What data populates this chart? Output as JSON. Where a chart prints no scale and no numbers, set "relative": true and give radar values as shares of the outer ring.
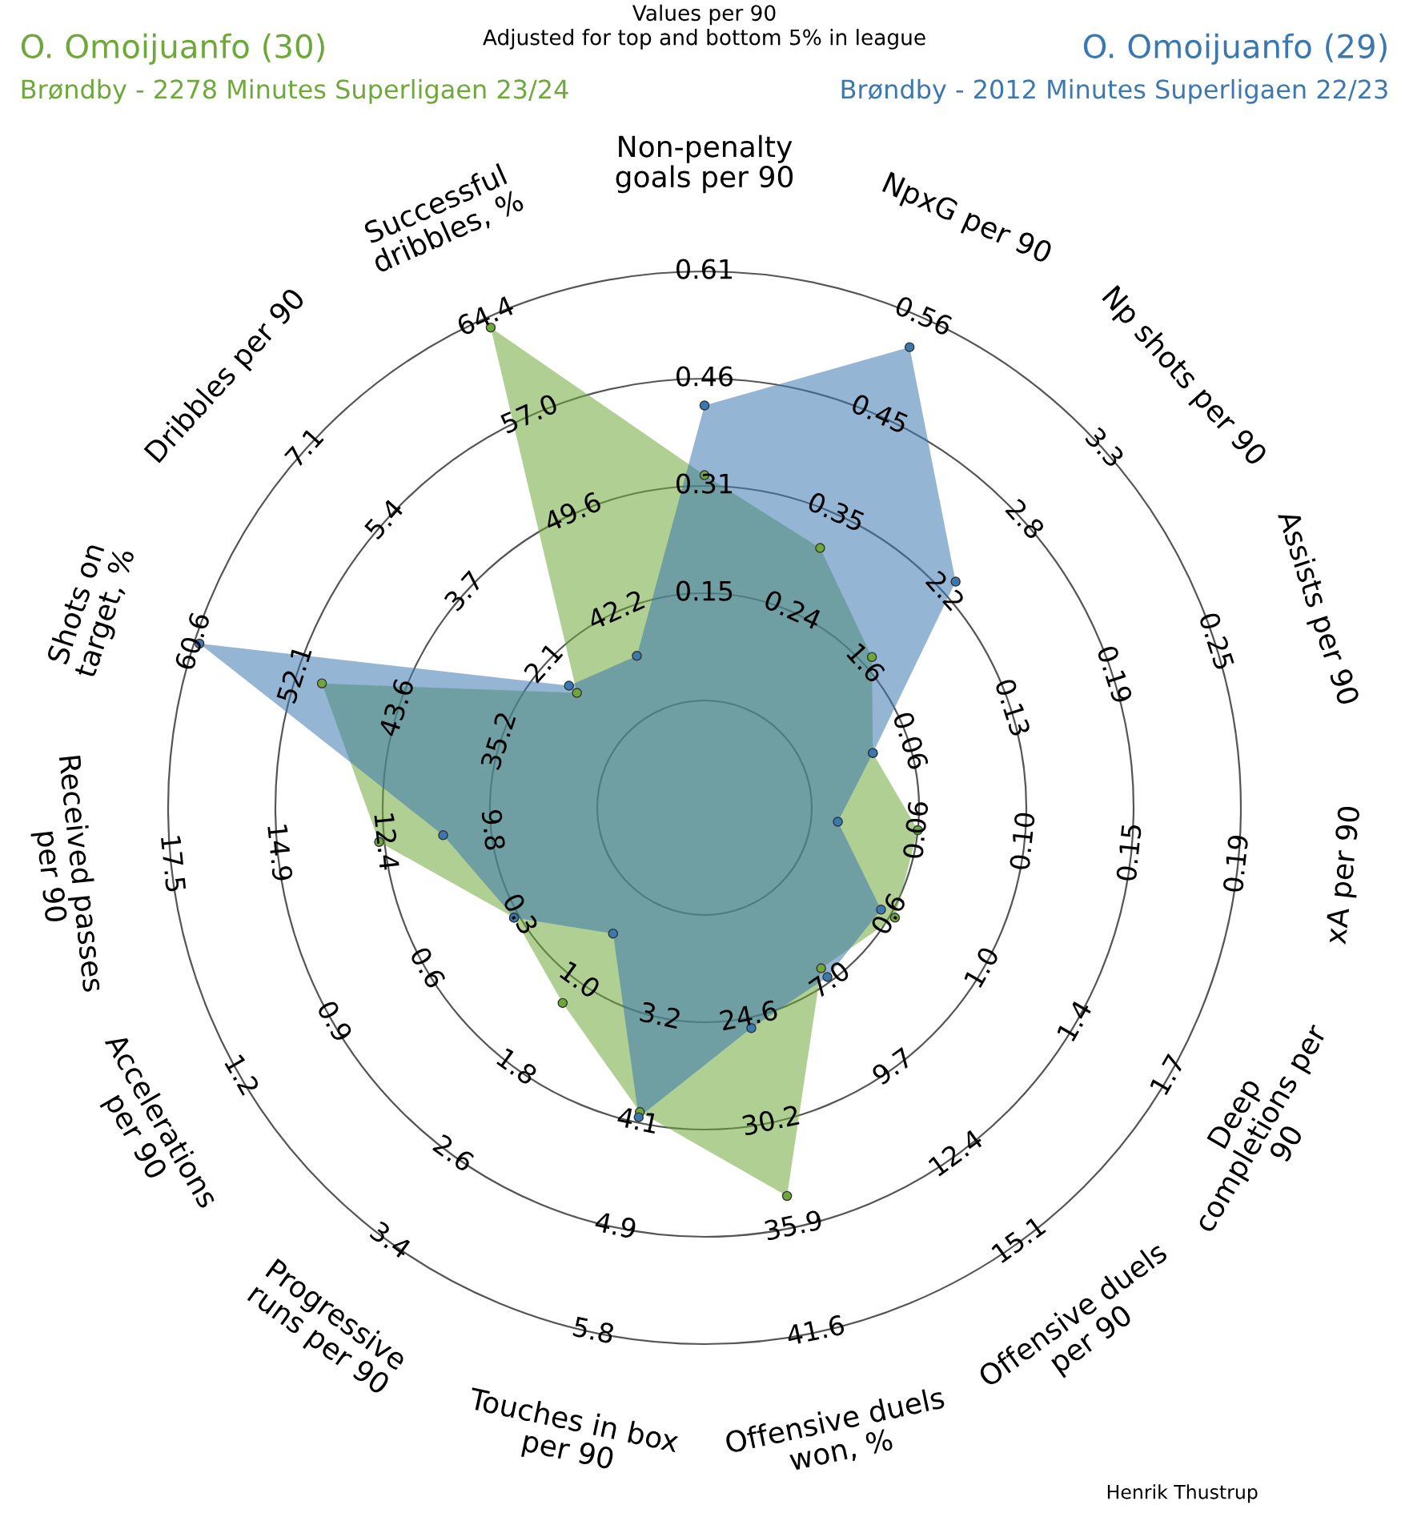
{
  "chart_data": {
    "type": "radar",
    "relative": true,
    "grid": true,
    "marker": "circle",
    "title": "Values per 90",
    "subtitle": "Adjusted for top and bottom 5% in league",
    "categories": [
      "Non-penalty\ngoals per 90",
      "NpxG per 90",
      "Np shots per 90",
      "Assists per 90",
      "xA per 90",
      "Deep\ncompletions per\n90",
      "Offensive duels\nper 90",
      "Offensive duels\nwon, %",
      "Touches in box\nper 90",
      "Progressive\nruns per 90",
      "Accelerations\nper 90",
      "Received passes\nper 90",
      "Shots on\ntarget, %",
      "Dribbles per 90",
      "Successful\ndribbles, %"
    ],
    "series": [
      {
        "name": "O. Omoijuanfo (30)",
        "color": "#6fa83a",
        "values": [
          0.62,
          0.53,
          0.42,
          0.33,
          0.4,
          0.41,
          0.37,
          0.74,
          0.58,
          0.45,
          0.41,
          0.61,
          0.75,
          0.32,
          0.98
        ]
      },
      {
        "name": "O. Omoijuanfo (29)",
        "color": "#3c78b0",
        "values": [
          0.75,
          0.94,
          0.63,
          0.33,
          0.25,
          0.38,
          0.39,
          0.42,
          0.59,
          0.29,
          0.41,
          0.49,
          0.99,
          0.34,
          0.31
        ]
      }
    ],
    "annotations": [
      "Brøndby - 2278 Minutes Superligaen 23/24",
      "Brøndby - 2012 Minutes Superligaen 22/23",
      "Henrik Thustrup",
      {
        "text": "0.15",
        "x": "Non-penalty\ngoals per 90"
      },
      {
        "text": "0.31",
        "x": "Non-penalty\ngoals per 90"
      },
      {
        "text": "0.46",
        "x": "Non-penalty\ngoals per 90"
      },
      {
        "text": "0.61",
        "x": "Non-penalty\ngoals per 90"
      },
      {
        "text": "0.24",
        "x": "NpxG per 90"
      },
      {
        "text": "0.35",
        "x": "NpxG per 90"
      },
      {
        "text": "0.45",
        "x": "NpxG per 90"
      },
      {
        "text": "0.56",
        "x": "NpxG per 90"
      },
      {
        "text": "1.6",
        "x": "Np shots per 90"
      },
      {
        "text": "2.2",
        "x": "Np shots per 90"
      },
      {
        "text": "2.8",
        "x": "Np shots per 90"
      },
      {
        "text": "3.3",
        "x": "Np shots per 90"
      },
      {
        "text": "0.06",
        "x": "Assists per 90"
      },
      {
        "text": "0.13",
        "x": "Assists per 90"
      },
      {
        "text": "0.19",
        "x": "Assists per 90"
      },
      {
        "text": "0.25",
        "x": "Assists per 90"
      },
      {
        "text": "0.06",
        "x": "xA per 90"
      },
      {
        "text": "0.10",
        "x": "xA per 90"
      },
      {
        "text": "0.15",
        "x": "xA per 90"
      },
      {
        "text": "0.19",
        "x": "xA per 90"
      },
      {
        "text": "0.6",
        "x": "Deep\ncompletions per\n90"
      },
      {
        "text": "1.0",
        "x": "Deep\ncompletions per\n90"
      },
      {
        "text": "1.4",
        "x": "Deep\ncompletions per\n90"
      },
      {
        "text": "1.7",
        "x": "Deep\ncompletions per\n90"
      },
      {
        "text": "7.0",
        "x": "Offensive duels\nper 90"
      },
      {
        "text": "9.7",
        "x": "Offensive duels\nper 90"
      },
      {
        "text": "12.4",
        "x": "Offensive duels\nper 90"
      },
      {
        "text": "15.1",
        "x": "Offensive duels\nper 90"
      },
      {
        "text": "24.6",
        "x": "Offensive duels\nwon, %"
      },
      {
        "text": "30.2",
        "x": "Offensive duels\nwon, %"
      },
      {
        "text": "35.9",
        "x": "Offensive duels\nwon, %"
      },
      {
        "text": "41.6",
        "x": "Offensive duels\nwon, %"
      },
      {
        "text": "3.2",
        "x": "Touches in box\nper 90"
      },
      {
        "text": "4.1",
        "x": "Touches in box\nper 90"
      },
      {
        "text": "4.9",
        "x": "Touches in box\nper 90"
      },
      {
        "text": "5.8",
        "x": "Touches in box\nper 90"
      },
      {
        "text": "1.0",
        "x": "Progressive\nruns per 90"
      },
      {
        "text": "1.8",
        "x": "Progressive\nruns per 90"
      },
      {
        "text": "2.6",
        "x": "Progressive\nruns per 90"
      },
      {
        "text": "3.4",
        "x": "Progressive\nruns per 90"
      },
      {
        "text": "0.3",
        "x": "Accelerations\nper 90"
      },
      {
        "text": "0.6",
        "x": "Accelerations\nper 90"
      },
      {
        "text": "0.9",
        "x": "Accelerations\nper 90"
      },
      {
        "text": "1.2",
        "x": "Accelerations\nper 90"
      },
      {
        "text": "9.8",
        "x": "Received passes\nper 90"
      },
      {
        "text": "12.4",
        "x": "Received passes\nper 90"
      },
      {
        "text": "14.9",
        "x": "Received passes\nper 90"
      },
      {
        "text": "17.5",
        "x": "Received passes\nper 90"
      },
      {
        "text": "35.2",
        "x": "Shots on\ntarget, %"
      },
      {
        "text": "43.6",
        "x": "Shots on\ntarget, %"
      },
      {
        "text": "52.1",
        "x": "Shots on\ntarget, %"
      },
      {
        "text": "60.6",
        "x": "Shots on\ntarget, %"
      },
      {
        "text": "2.1",
        "x": "Dribbles per 90"
      },
      {
        "text": "3.7",
        "x": "Dribbles per 90"
      },
      {
        "text": "5.4",
        "x": "Dribbles per 90"
      },
      {
        "text": "7.1",
        "x": "Dribbles per 90"
      },
      {
        "text": "42.2",
        "x": "Successful\ndribbles, %"
      },
      {
        "text": "49.6",
        "x": "Successful\ndribbles, %"
      },
      {
        "text": "57.0",
        "x": "Successful\ndribbles, %"
      },
      {
        "text": "64.4",
        "x": "Successful\ndribbles, %"
      }
    ]
  }
}
